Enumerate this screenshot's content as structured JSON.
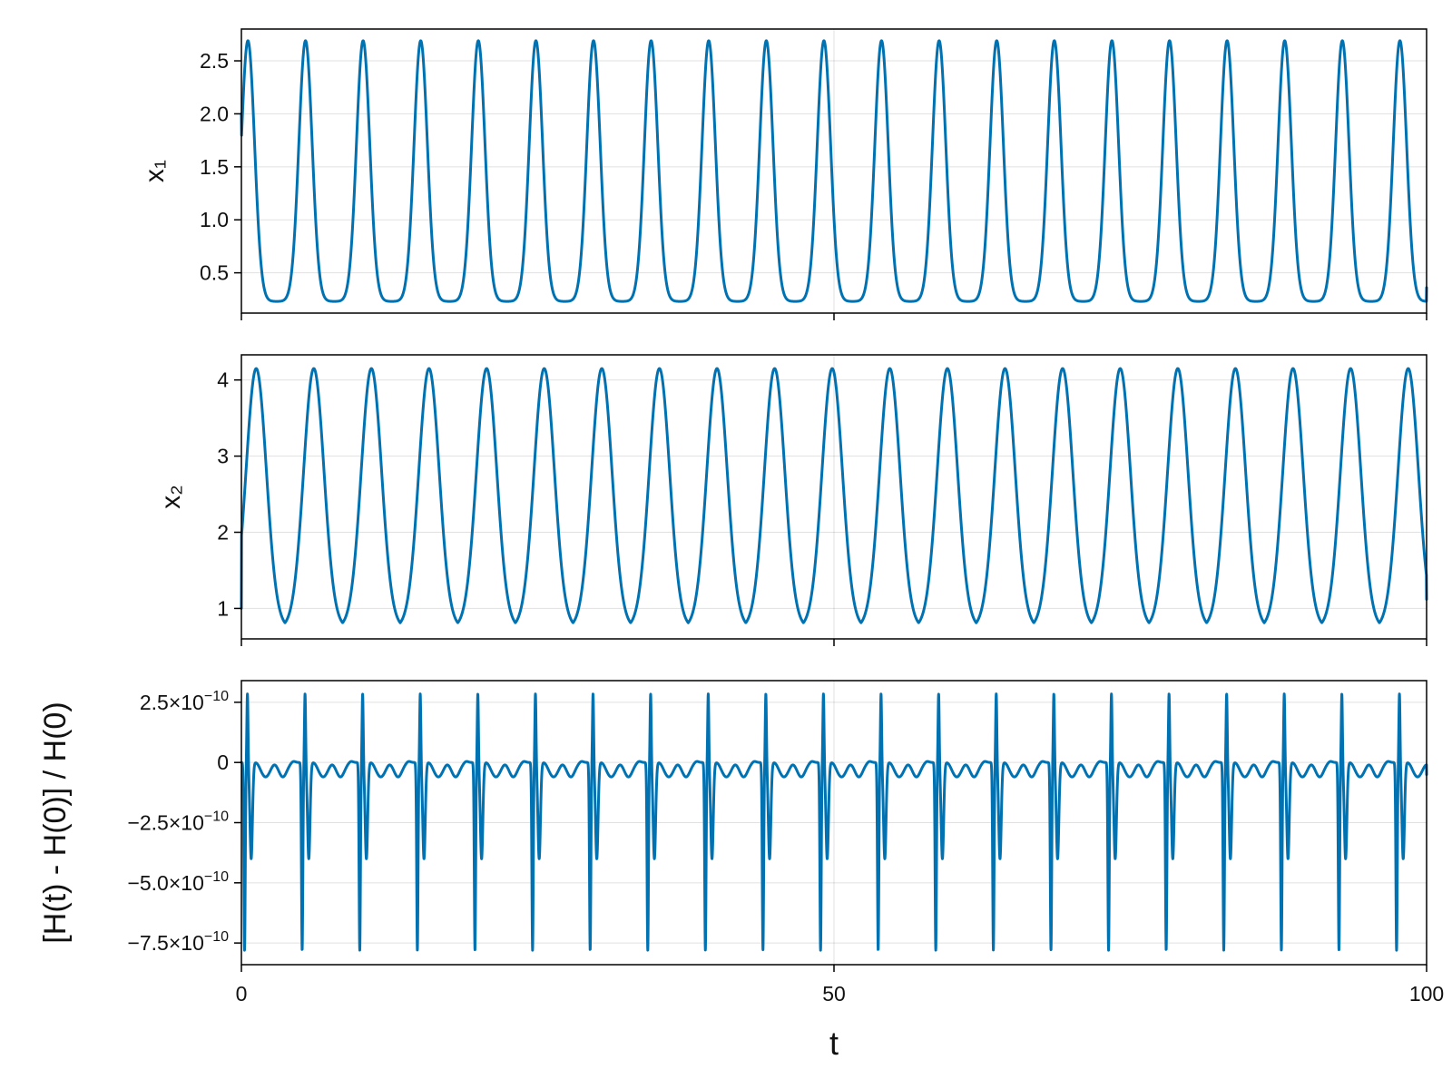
{
  "figure": {
    "xlabel": "t",
    "line_color": "#0072b2"
  },
  "chart_data": [
    {
      "type": "line",
      "id": "x1",
      "ylabel": "x₁",
      "xlim": [
        0,
        100
      ],
      "ylim": [
        0.12,
        2.8
      ],
      "yticks": [
        0.5,
        1.0,
        1.5,
        2.0,
        2.5
      ],
      "ytick_labels": [
        "0.5",
        "1.0",
        "1.5",
        "2.0",
        "2.5"
      ],
      "xticks": [
        0,
        50,
        100
      ],
      "xtick_labels_visible": false,
      "series": [
        {
          "kind": "periodic-peaks",
          "period": 4.86,
          "first_peak_t": 0.55,
          "peak_width": 0.95,
          "min": 0.23,
          "max": 2.69,
          "t_start": 0,
          "t_end": 100,
          "y_start": 2.0,
          "y_end": 0.36
        }
      ],
      "grid": true
    },
    {
      "type": "line",
      "id": "x2",
      "ylabel": "x₂",
      "xlim": [
        0,
        100
      ],
      "ylim": [
        0.6,
        4.33
      ],
      "yticks": [
        1,
        2,
        3,
        4
      ],
      "ytick_labels": [
        "1",
        "2",
        "3",
        "4"
      ],
      "xticks": [
        0,
        50,
        100
      ],
      "xtick_labels_visible": false,
      "series": [
        {
          "kind": "periodic-peaks",
          "period": 4.86,
          "first_peak_t": 1.25,
          "peak_width": 1.45,
          "min": 0.75,
          "max": 4.15,
          "t_start": 0,
          "t_end": 100,
          "y_start": 1.0,
          "y_end": 1.12
        }
      ],
      "grid": true
    },
    {
      "type": "line",
      "id": "energy-error",
      "ylabel": "[H(t) - H(0)] / H(0)",
      "xlabel": "t",
      "xlim": [
        0,
        100
      ],
      "ylim": [
        -8.4e-10,
        3.4e-10
      ],
      "yticks": [
        -7.5e-10,
        -5e-10,
        -2.5e-10,
        0,
        2.5e-10
      ],
      "ytick_labels": [
        {
          "mantissa": "−7.5×10",
          "exp": "−10"
        },
        {
          "mantissa": "−5.0×10",
          "exp": "−10"
        },
        {
          "mantissa": "−2.5×10",
          "exp": "−10"
        },
        {
          "mantissa": "0",
          "exp": ""
        },
        {
          "mantissa": "2.5×10",
          "exp": "−10"
        }
      ],
      "xticks": [
        0,
        50,
        100
      ],
      "xtick_labels": [
        "0",
        "50",
        "100"
      ],
      "series": [
        {
          "kind": "energy-error-cycle",
          "period": 4.86,
          "t_start": 0,
          "t_end": 100,
          "spike_up_max": 2.9e-10,
          "spike_down_min": -7.8e-10,
          "secondary_min": -4e-10,
          "baseline_dip_min": -6e-11,
          "y_start": 0,
          "y_end": -5e-11
        }
      ],
      "grid": true
    }
  ]
}
